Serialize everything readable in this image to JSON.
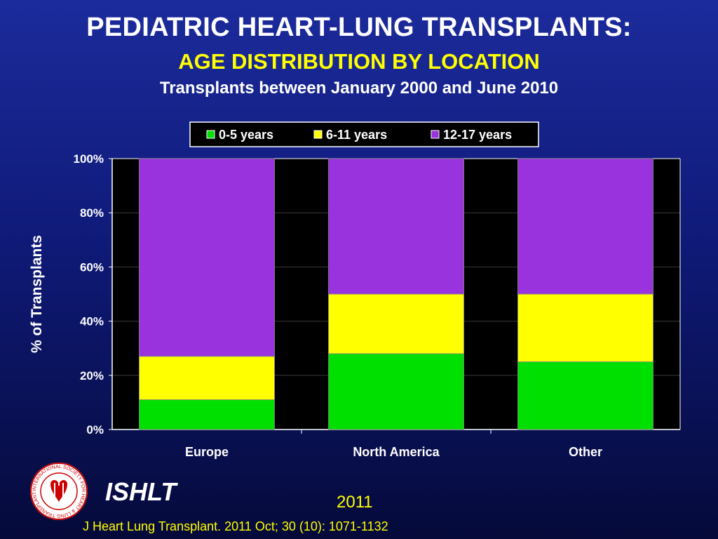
{
  "slide": {
    "title": "PEDIATRIC HEART-LUNG TRANSPLANTS:",
    "subtitle": "AGE DISTRIBUTION BY LOCATION",
    "subsubtitle": "Transplants between January 2000 and June 2010",
    "org": "ISHLT",
    "year": "2011",
    "citation": "J Heart Lung Transplant. 2011 Oct; 30 (10): 1071-1132",
    "logo_text": "INTERNATIONAL SOCIETY FOR HEART & LUNG TRANSPLANTATION"
  },
  "colors": {
    "series_0_5": "#00e000",
    "series_6_11": "#ffff00",
    "series_12_17": "#9933dd",
    "plot_bg": "#000000",
    "axis_text": "#ffffff"
  },
  "chart_data": {
    "type": "bar",
    "stacked": true,
    "percent": true,
    "categories": [
      "Europe",
      "North America",
      "Other"
    ],
    "series": [
      {
        "name": "0-5 years",
        "values": [
          11,
          28,
          25
        ],
        "color": "#00e000"
      },
      {
        "name": "6-11 years",
        "values": [
          16,
          22,
          25
        ],
        "color": "#ffff00"
      },
      {
        "name": "12-17 years",
        "values": [
          73,
          50,
          50
        ],
        "color": "#9933dd"
      }
    ],
    "ylabel": "% of Transplants",
    "xlabel": "",
    "ylim": [
      0,
      100
    ],
    "yticks": [
      "0%",
      "20%",
      "40%",
      "60%",
      "80%",
      "100%"
    ],
    "grid": true,
    "legend_position": "top"
  }
}
